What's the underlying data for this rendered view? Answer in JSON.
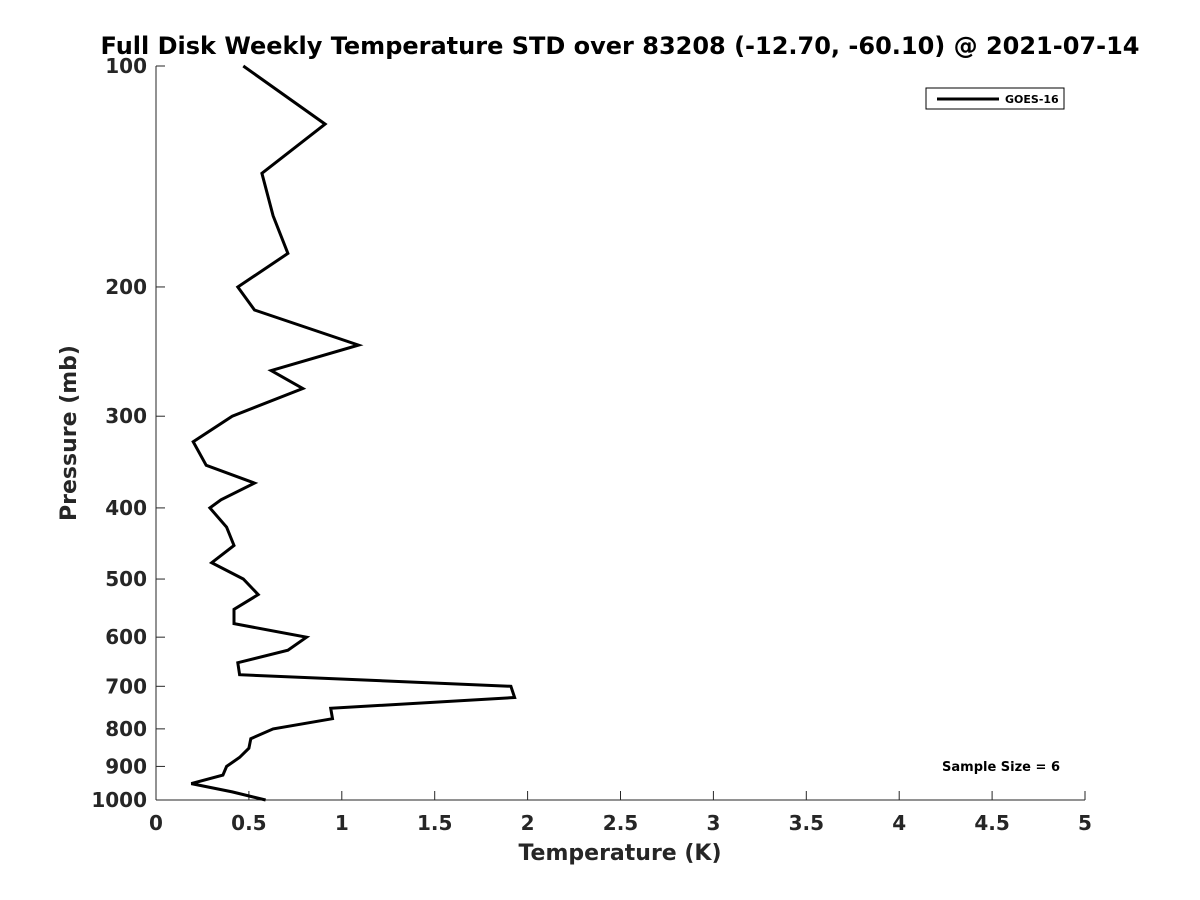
{
  "chart_data": {
    "type": "line",
    "title": "Full Disk Weekly Temperature STD over 83208 (-12.70, -60.10) @ 2021-07-14",
    "xlabel": "Temperature (K)",
    "ylabel": "Pressure (mb)",
    "xlim": [
      0,
      5
    ],
    "ylim": [
      1000,
      100
    ],
    "y_scale": "log",
    "y_reversed": true,
    "x_ticks": [
      "0",
      "0.5",
      "1",
      "1.5",
      "2",
      "2.5",
      "3",
      "3.5",
      "4",
      "4.5",
      "5"
    ],
    "x_tick_values": [
      0,
      0.5,
      1,
      1.5,
      2,
      2.5,
      3,
      3.5,
      4,
      4.5,
      5
    ],
    "y_ticks": [
      "100",
      "200",
      "300",
      "400",
      "500",
      "600",
      "700",
      "800",
      "900",
      "1000"
    ],
    "y_tick_values": [
      100,
      200,
      300,
      400,
      500,
      600,
      700,
      800,
      900,
      1000
    ],
    "grid": false,
    "legend_position": "top-right",
    "series": [
      {
        "name": "GOES-16",
        "color": "#000000",
        "points": [
          {
            "x": 0.47,
            "p": 100
          },
          {
            "x": 0.91,
            "p": 120
          },
          {
            "x": 0.57,
            "p": 140
          },
          {
            "x": 0.63,
            "p": 160
          },
          {
            "x": 0.71,
            "p": 180
          },
          {
            "x": 0.44,
            "p": 200
          },
          {
            "x": 0.53,
            "p": 215
          },
          {
            "x": 1.09,
            "p": 240
          },
          {
            "x": 0.62,
            "p": 260
          },
          {
            "x": 0.79,
            "p": 275
          },
          {
            "x": 0.41,
            "p": 300
          },
          {
            "x": 0.2,
            "p": 325
          },
          {
            "x": 0.27,
            "p": 350
          },
          {
            "x": 0.53,
            "p": 370
          },
          {
            "x": 0.35,
            "p": 390
          },
          {
            "x": 0.29,
            "p": 400
          },
          {
            "x": 0.38,
            "p": 425
          },
          {
            "x": 0.42,
            "p": 450
          },
          {
            "x": 0.3,
            "p": 475
          },
          {
            "x": 0.47,
            "p": 500
          },
          {
            "x": 0.55,
            "p": 525
          },
          {
            "x": 0.42,
            "p": 550
          },
          {
            "x": 0.42,
            "p": 575
          },
          {
            "x": 0.81,
            "p": 600
          },
          {
            "x": 0.71,
            "p": 625
          },
          {
            "x": 0.44,
            "p": 650
          },
          {
            "x": 0.45,
            "p": 675
          },
          {
            "x": 1.91,
            "p": 700
          },
          {
            "x": 1.93,
            "p": 725
          },
          {
            "x": 0.94,
            "p": 750
          },
          {
            "x": 0.95,
            "p": 775
          },
          {
            "x": 0.63,
            "p": 800
          },
          {
            "x": 0.51,
            "p": 825
          },
          {
            "x": 0.5,
            "p": 850
          },
          {
            "x": 0.45,
            "p": 875
          },
          {
            "x": 0.38,
            "p": 900
          },
          {
            "x": 0.36,
            "p": 925
          },
          {
            "x": 0.19,
            "p": 950
          },
          {
            "x": 0.41,
            "p": 975
          },
          {
            "x": 0.59,
            "p": 1000
          }
        ]
      }
    ],
    "annotations": [
      "Sample Size = 6"
    ]
  }
}
